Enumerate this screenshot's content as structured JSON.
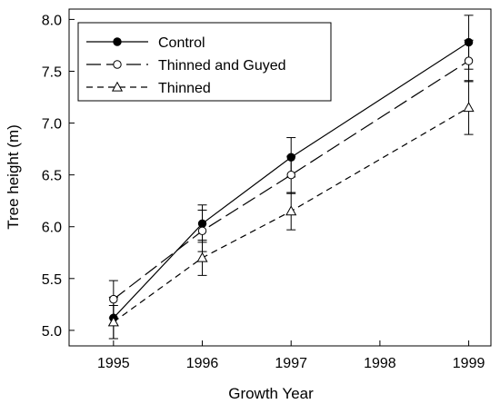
{
  "chart_data": {
    "type": "line",
    "xlabel": "Growth Year",
    "ylabel": "Tree height (m)",
    "xlim": [
      1994.5,
      1999.25
    ],
    "ylim": [
      4.85,
      8.1
    ],
    "xticks": [
      1995,
      1996,
      1997,
      1998,
      1999
    ],
    "xtick_labels": [
      "1995",
      "1996",
      "1997",
      "1998",
      "1999"
    ],
    "yticks": [
      5.0,
      5.5,
      6.0,
      6.5,
      7.0,
      7.5,
      8.0
    ],
    "ytick_labels": [
      "5.0",
      "5.5",
      "6.0",
      "6.5",
      "7.0",
      "7.5",
      "8.0"
    ],
    "grid": false,
    "legend_position": "top-left",
    "x": [
      1995,
      1996,
      1997,
      1999
    ],
    "series": [
      {
        "name": "Control",
        "values": [
          5.12,
          6.03,
          6.67,
          7.78
        ],
        "error": [
          0.2,
          0.18,
          0.19,
          0.26
        ],
        "marker": "filled-circle",
        "line_style": "solid",
        "color": "#000000"
      },
      {
        "name": "Thinned and Guyed",
        "values": [
          5.3,
          5.96,
          6.5,
          7.6
        ],
        "error": [
          0.18,
          0.2,
          0.18,
          0.2
        ],
        "marker": "open-circle",
        "line_style": "long-dash",
        "color": "#000000"
      },
      {
        "name": "Thinned",
        "values": [
          5.08,
          5.7,
          6.15,
          7.15
        ],
        "error": [
          0.16,
          0.17,
          0.18,
          0.26
        ],
        "marker": "open-triangle",
        "line_style": "short-dash",
        "color": "#000000"
      }
    ]
  }
}
